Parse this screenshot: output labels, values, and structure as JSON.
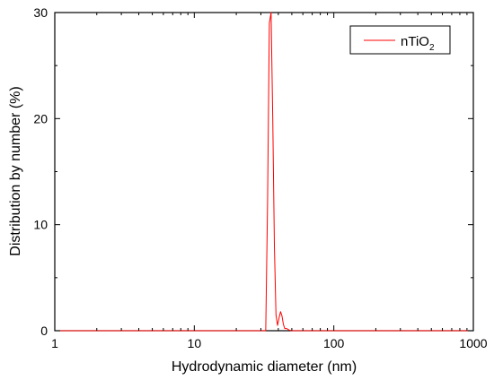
{
  "chart_data": {
    "type": "line",
    "xscale": "log",
    "xlim": [
      1,
      1000
    ],
    "ylim": [
      0,
      30
    ],
    "xlabel": "Hydrodynamic diameter (nm)",
    "ylabel": "Distribution by number (%)",
    "xticks": [
      1,
      10,
      100,
      1000
    ],
    "xtick_labels": [
      "1",
      "10",
      "100",
      "1000"
    ],
    "yticks": [
      0,
      10,
      20,
      30
    ],
    "ytick_labels": [
      "0",
      "10",
      "20",
      "30"
    ],
    "grid": false,
    "legend_position": "top-right",
    "series": [
      {
        "name": "nTiO2",
        "legend_text": "nTiO",
        "legend_sub": "2",
        "color": "#ff0000",
        "x": [
          1,
          30,
          32.5,
          33.5,
          34.5,
          35.5,
          36.5,
          37.5,
          38.5,
          39.5,
          40.5,
          41.5,
          42.5,
          43.5,
          44.5,
          46,
          48,
          50,
          52,
          60,
          100,
          1000
        ],
        "y": [
          0,
          0,
          0,
          12,
          29,
          30,
          20,
          8,
          1.5,
          0.5,
          1.2,
          1.8,
          1.4,
          0.6,
          0.2,
          0.2,
          0.05,
          0,
          0,
          0,
          0,
          0
        ]
      }
    ]
  }
}
